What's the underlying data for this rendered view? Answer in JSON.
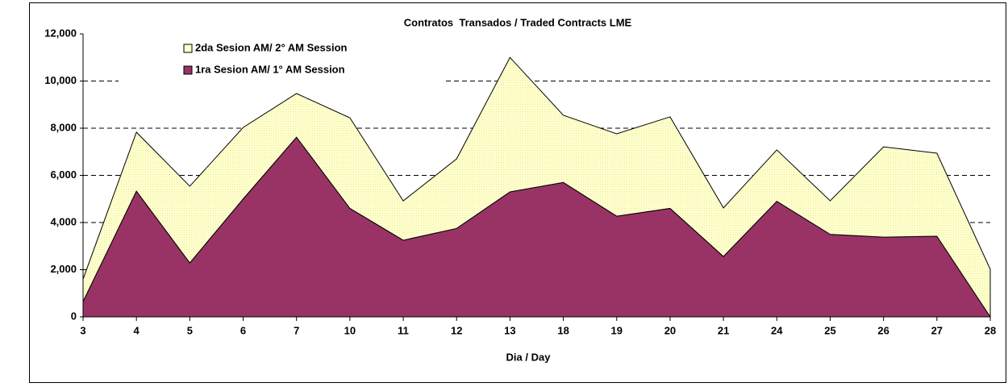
{
  "chart_data": {
    "type": "stacked_area",
    "title": "Contratos  Transados / Traded Contracts LME",
    "x_label": "Dia / Day",
    "categories": [
      "3",
      "4",
      "5",
      "6",
      "7",
      "10",
      "11",
      "12",
      "13",
      "18",
      "19",
      "20",
      "21",
      "24",
      "25",
      "26",
      "27",
      "28"
    ],
    "series": [
      {
        "name": "1ra Sesion AM/ 1° AM Session",
        "color": "#993366",
        "values": [
          650,
          5330,
          2290,
          5000,
          7620,
          4600,
          3250,
          3750,
          5300,
          5700,
          4270,
          4600,
          2560,
          4900,
          3500,
          3380,
          3420,
          0
        ]
      },
      {
        "name": "2da Sesion AM/ 2° AM Session",
        "color": "#ffffcc",
        "values": [
          950,
          2500,
          3250,
          3030,
          1850,
          3840,
          1670,
          2950,
          5700,
          2850,
          3490,
          3880,
          2060,
          2180,
          1420,
          3830,
          3520,
          2020
        ]
      }
    ],
    "ylim": [
      0,
      12000
    ],
    "yticks": [
      0,
      {
        "value": 2000,
        "label": "2,000"
      },
      {
        "value": 4000,
        "label": "4,000"
      },
      {
        "value": 6000,
        "label": "6,000"
      },
      {
        "value": 8000,
        "label": "8,000"
      },
      {
        "value": 10000,
        "label": "10,000"
      },
      {
        "value": 12000,
        "label": "12,000"
      }
    ],
    "grid": true
  }
}
